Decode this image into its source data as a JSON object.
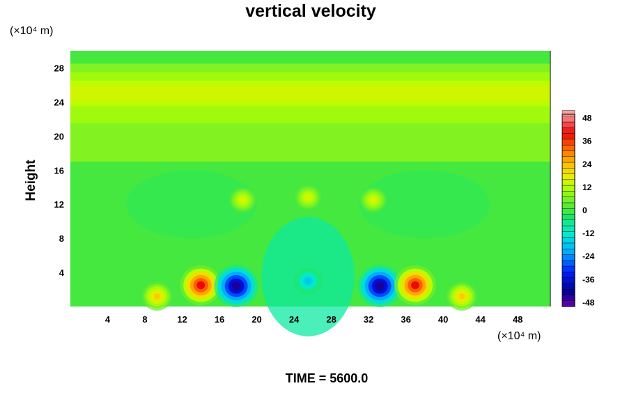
{
  "chart_data": {
    "type": "heatmap",
    "title": "vertical velocity",
    "ylabel": "Height",
    "x_unit_label": "(×10⁴ m)",
    "y_unit_label": "(×10⁴ m)",
    "xlim": [
      0,
      51.5
    ],
    "ylim": [
      0,
      30
    ],
    "x_ticks": [
      4,
      8,
      12,
      16,
      20,
      24,
      28,
      32,
      36,
      40,
      44,
      48
    ],
    "y_ticks": [
      4,
      8,
      12,
      16,
      20,
      24,
      28
    ],
    "colorbar": {
      "levels": [
        48,
        36,
        24,
        12,
        0,
        -12,
        -24,
        -36,
        -48
      ],
      "vmin": -50,
      "vmax": 50
    },
    "features": [
      {
        "type": "updraft",
        "x": 14.0,
        "y": 2.5,
        "value": 40
      },
      {
        "type": "downdraft",
        "x": 17.8,
        "y": 2.4,
        "value": -44
      },
      {
        "type": "downdraft",
        "x": 33.2,
        "y": 2.4,
        "value": -44
      },
      {
        "type": "updraft",
        "x": 37.0,
        "y": 2.5,
        "value": 40
      },
      {
        "type": "updraft",
        "x": 9.3,
        "y": 1.2,
        "value": 22
      },
      {
        "type": "updraft",
        "x": 42.0,
        "y": 1.2,
        "value": 22
      },
      {
        "type": "updraft",
        "x": 18.5,
        "y": 12.5,
        "value": 16
      },
      {
        "type": "updraft",
        "x": 32.5,
        "y": 12.5,
        "value": 16
      },
      {
        "type": "updraft",
        "x": 25.5,
        "y": 12.8,
        "value": 16
      },
      {
        "type": "downdraft",
        "x": 25.5,
        "y": 3.0,
        "value": -18
      }
    ],
    "time_label": "TIME = 5600.0"
  }
}
